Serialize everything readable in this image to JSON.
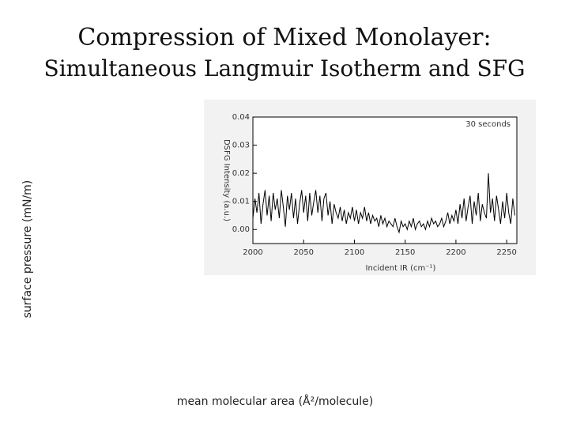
{
  "slide": {
    "title_line1": "Compression of Mixed Monolayer:",
    "title_line2": "Simultaneous Langmuir Isotherm and SFG",
    "y_axis_label": "surface pressure (mN/m)",
    "x_axis_label": "mean molecular area (Å²/molecule)"
  },
  "chart_data": {
    "type": "line",
    "title": "",
    "annotation": "30 seconds",
    "xlabel": "Incident IR (cm⁻¹)",
    "ylabel": "DSFG Intensity (a.u.)",
    "xlim": [
      2000,
      2260
    ],
    "ylim": [
      -0.005,
      0.04
    ],
    "xticks": [
      "2000",
      "2050",
      "2100",
      "2150",
      "2200",
      "2250"
    ],
    "yticks": [
      "0.04",
      "0.03",
      "0.02",
      "0.01",
      "0.00"
    ],
    "grid": false,
    "line_color": "#000000",
    "series": [
      {
        "name": "",
        "x": [
          2000,
          2002,
          2004,
          2006,
          2008,
          2010,
          2012,
          2014,
          2016,
          2018,
          2020,
          2022,
          2024,
          2026,
          2028,
          2030,
          2032,
          2034,
          2036,
          2038,
          2040,
          2042,
          2044,
          2046,
          2048,
          2050,
          2052,
          2054,
          2056,
          2058,
          2060,
          2062,
          2064,
          2066,
          2068,
          2070,
          2072,
          2074,
          2076,
          2078,
          2080,
          2082,
          2084,
          2086,
          2088,
          2090,
          2092,
          2094,
          2096,
          2098,
          2100,
          2102,
          2104,
          2106,
          2108,
          2110,
          2112,
          2114,
          2116,
          2118,
          2120,
          2122,
          2124,
          2126,
          2128,
          2130,
          2132,
          2134,
          2136,
          2138,
          2140,
          2142,
          2144,
          2146,
          2148,
          2150,
          2152,
          2154,
          2156,
          2158,
          2160,
          2162,
          2164,
          2166,
          2168,
          2170,
          2172,
          2174,
          2176,
          2178,
          2180,
          2182,
          2184,
          2186,
          2188,
          2190,
          2192,
          2194,
          2196,
          2198,
          2200,
          2202,
          2204,
          2206,
          2208,
          2210,
          2212,
          2214,
          2216,
          2218,
          2220,
          2222,
          2224,
          2226,
          2228,
          2230,
          2232,
          2234,
          2236,
          2238,
          2240,
          2242,
          2244,
          2246,
          2248,
          2250,
          2252,
          2254,
          2256,
          2258
        ],
        "y": [
          0.004,
          0.011,
          0.006,
          0.013,
          0.002,
          0.009,
          0.014,
          0.005,
          0.012,
          0.003,
          0.013,
          0.007,
          0.011,
          0.004,
          0.014,
          0.008,
          0.001,
          0.012,
          0.007,
          0.013,
          0.004,
          0.011,
          0.002,
          0.009,
          0.014,
          0.006,
          0.012,
          0.003,
          0.013,
          0.005,
          0.01,
          0.014,
          0.006,
          0.012,
          0.003,
          0.011,
          0.013,
          0.005,
          0.01,
          0.002,
          0.009,
          0.006,
          0.004,
          0.008,
          0.003,
          0.007,
          0.002,
          0.006,
          0.004,
          0.008,
          0.003,
          0.007,
          0.002,
          0.006,
          0.004,
          0.008,
          0.003,
          0.006,
          0.002,
          0.005,
          0.003,
          0.004,
          0.001,
          0.005,
          0.002,
          0.004,
          0.001,
          0.003,
          0.002,
          0.001,
          0.004,
          0.001,
          -0.001,
          0.003,
          0.001,
          0.002,
          0.0,
          0.003,
          0.001,
          0.004,
          0.0,
          0.002,
          0.003,
          0.001,
          0.002,
          0.0,
          0.003,
          0.001,
          0.004,
          0.002,
          0.003,
          0.001,
          0.002,
          0.004,
          0.001,
          0.003,
          0.006,
          0.002,
          0.005,
          0.003,
          0.007,
          0.002,
          0.009,
          0.004,
          0.011,
          0.003,
          0.008,
          0.012,
          0.002,
          0.01,
          0.005,
          0.013,
          0.003,
          0.009,
          0.006,
          0.004,
          0.02,
          0.006,
          0.011,
          0.003,
          0.012,
          0.007,
          0.002,
          0.01,
          0.004,
          0.013,
          0.006,
          0.002,
          0.011,
          0.005
        ]
      }
    ]
  }
}
